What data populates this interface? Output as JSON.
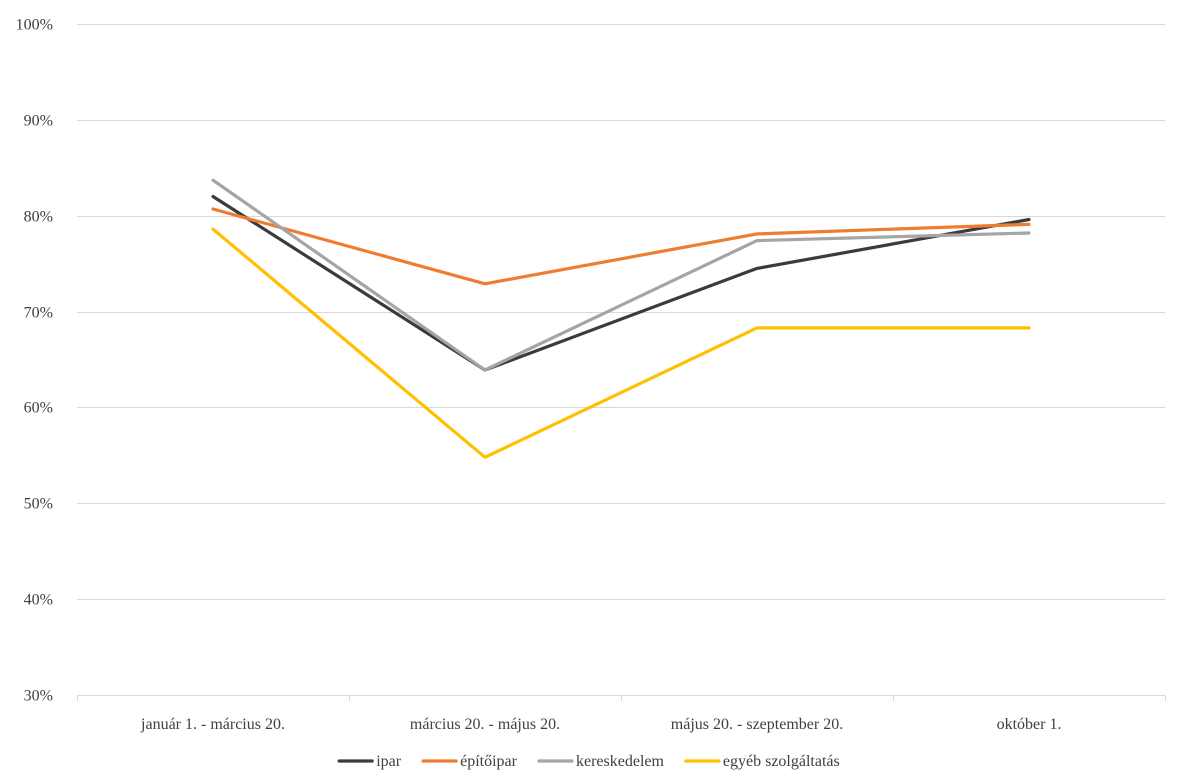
{
  "chart_data": {
    "type": "line",
    "title": "",
    "xlabel": "",
    "ylabel": "",
    "categories": [
      "január 1. - március 20.",
      "március 20. - május 20.",
      "május 20. - szeptember 20.",
      "október 1."
    ],
    "ylim": [
      0.3,
      1.0
    ],
    "yticks": [
      0.3,
      0.4,
      0.5,
      0.6,
      0.7,
      0.8,
      0.9,
      1.0
    ],
    "ytick_labels": [
      "30%",
      "40%",
      "50%",
      "60%",
      "70%",
      "80%",
      "90%",
      "100%"
    ],
    "grid": true,
    "legend_position": "bottom",
    "series": [
      {
        "name": "ipar",
        "color": "#3b3b3b",
        "values": [
          0.82,
          0.639,
          0.745,
          0.796
        ]
      },
      {
        "name": "építőipar",
        "color": "#ed7d31",
        "values": [
          0.807,
          0.729,
          0.781,
          0.791
        ]
      },
      {
        "name": "kereskedelem",
        "color": "#a5a5a5",
        "values": [
          0.837,
          0.639,
          0.774,
          0.782
        ]
      },
      {
        "name": "egyéb szolgáltatás",
        "color": "#ffc000",
        "values": [
          0.786,
          0.548,
          0.683,
          0.683
        ]
      }
    ]
  }
}
